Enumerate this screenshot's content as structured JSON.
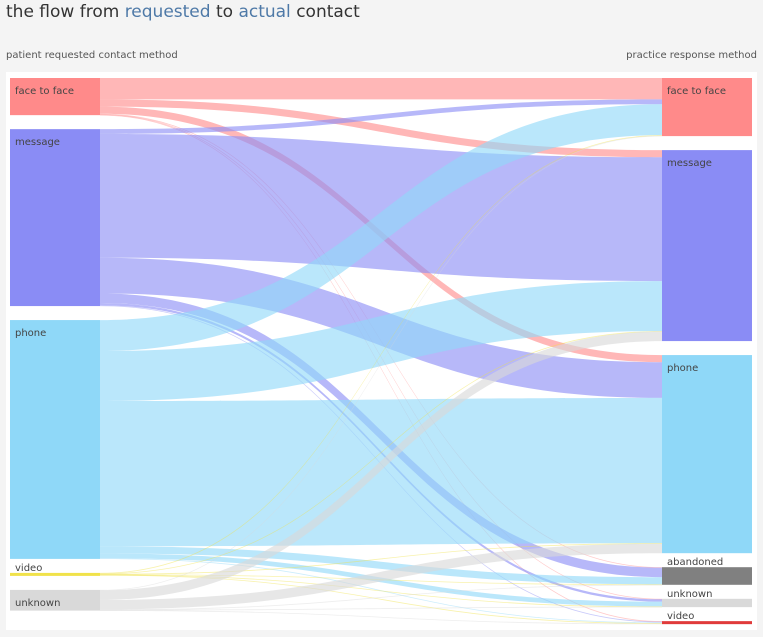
{
  "title": {
    "prefix": "the flow from ",
    "word1": "requested",
    "middle": " to ",
    "word2": "actual",
    "suffix": " contact"
  },
  "left_axis_label": "patient requested contact method",
  "right_axis_label": "practice response method",
  "colors": {
    "face_to_face": "#ff8a8a",
    "message": "#8a8cf5",
    "phone": "#8fd8f8",
    "video": "#f0e24a",
    "unknown": "#d9d9d9",
    "abandoned": "#808080",
    "video_response": "#e03a3a",
    "highlight_blue": "#4e79a7"
  },
  "chart_data": {
    "type": "sankey",
    "title": "the flow from requested to actual contact",
    "left_label": "patient requested contact method",
    "right_label": "practice response method",
    "sources": [
      {
        "id": "face_to_face",
        "label": "face to face",
        "color": "#ff8a8a"
      },
      {
        "id": "message",
        "label": "message",
        "color": "#8a8cf5"
      },
      {
        "id": "phone",
        "label": "phone",
        "color": "#8fd8f8"
      },
      {
        "id": "video",
        "label": "video",
        "color": "#f0e24a"
      },
      {
        "id": "unknown",
        "label": "unknown",
        "color": "#d9d9d9"
      }
    ],
    "targets": [
      {
        "id": "face_to_face",
        "label": "face to face",
        "color": "#ff8a8a"
      },
      {
        "id": "message",
        "label": "message",
        "color": "#8a8cf5"
      },
      {
        "id": "phone",
        "label": "phone",
        "color": "#8fd8f8"
      },
      {
        "id": "abandoned",
        "label": "abandoned",
        "color": "#808080"
      },
      {
        "id": "unknown",
        "label": "unknown",
        "color": "#d9d9d9"
      },
      {
        "id": "video",
        "label": "video",
        "color": "#e03a3a"
      }
    ],
    "flows": [
      {
        "source": "face_to_face",
        "target": "face_to_face",
        "value": 9
      },
      {
        "source": "face_to_face",
        "target": "message",
        "value": 3
      },
      {
        "source": "face_to_face",
        "target": "phone",
        "value": 3
      },
      {
        "source": "face_to_face",
        "target": "abandoned",
        "value": 0.2
      },
      {
        "source": "face_to_face",
        "target": "unknown",
        "value": 0.2
      },
      {
        "source": "face_to_face",
        "target": "video",
        "value": 0.2
      },
      {
        "source": "message",
        "target": "face_to_face",
        "value": 2
      },
      {
        "source": "message",
        "target": "message",
        "value": 52
      },
      {
        "source": "message",
        "target": "phone",
        "value": 15
      },
      {
        "source": "message",
        "target": "abandoned",
        "value": 4
      },
      {
        "source": "message",
        "target": "unknown",
        "value": 1
      },
      {
        "source": "message",
        "target": "video",
        "value": 0.3
      },
      {
        "source": "phone",
        "target": "face_to_face",
        "value": 13
      },
      {
        "source": "phone",
        "target": "message",
        "value": 21
      },
      {
        "source": "phone",
        "target": "phone",
        "value": 61
      },
      {
        "source": "phone",
        "target": "abandoned",
        "value": 3
      },
      {
        "source": "phone",
        "target": "unknown",
        "value": 2
      },
      {
        "source": "phone",
        "target": "video",
        "value": 0.3
      },
      {
        "source": "video",
        "target": "face_to_face",
        "value": 0.2
      },
      {
        "source": "video",
        "target": "message",
        "value": 0.2
      },
      {
        "source": "video",
        "target": "phone",
        "value": 0.2
      },
      {
        "source": "video",
        "target": "abandoned",
        "value": 0.1
      },
      {
        "source": "video",
        "target": "unknown",
        "value": 0.1
      },
      {
        "source": "video",
        "target": "video",
        "value": 0.2
      },
      {
        "source": "unknown",
        "target": "face_to_face",
        "value": 0.2
      },
      {
        "source": "unknown",
        "target": "message",
        "value": 4
      },
      {
        "source": "unknown",
        "target": "phone",
        "value": 4
      },
      {
        "source": "unknown",
        "target": "abandoned",
        "value": 0.1
      },
      {
        "source": "unknown",
        "target": "unknown",
        "value": 0.2
      },
      {
        "source": "unknown",
        "target": "video",
        "value": 0.2
      }
    ]
  }
}
